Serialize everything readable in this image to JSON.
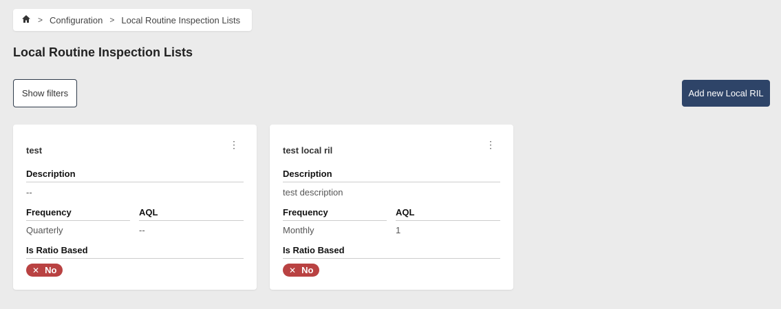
{
  "breadcrumb": {
    "items": [
      "Configuration",
      "Local Routine Inspection Lists"
    ]
  },
  "page": {
    "title": "Local Routine Inspection Lists"
  },
  "toolbar": {
    "show_filters": "Show filters",
    "add_new": "Add new Local RIL"
  },
  "labels": {
    "description": "Description",
    "frequency": "Frequency",
    "aql": "AQL",
    "is_ratio_based": "Is Ratio Based"
  },
  "cards": [
    {
      "name": "test",
      "description": "--",
      "frequency": "Quarterly",
      "aql": "--",
      "is_ratio_based": "No"
    },
    {
      "name": "test local ril",
      "description": "test description",
      "frequency": "Monthly",
      "aql": "1",
      "is_ratio_based": "No"
    }
  ],
  "colors": {
    "primary": "#2e4468",
    "badge_no": "#b94242",
    "background": "#ebebeb"
  }
}
